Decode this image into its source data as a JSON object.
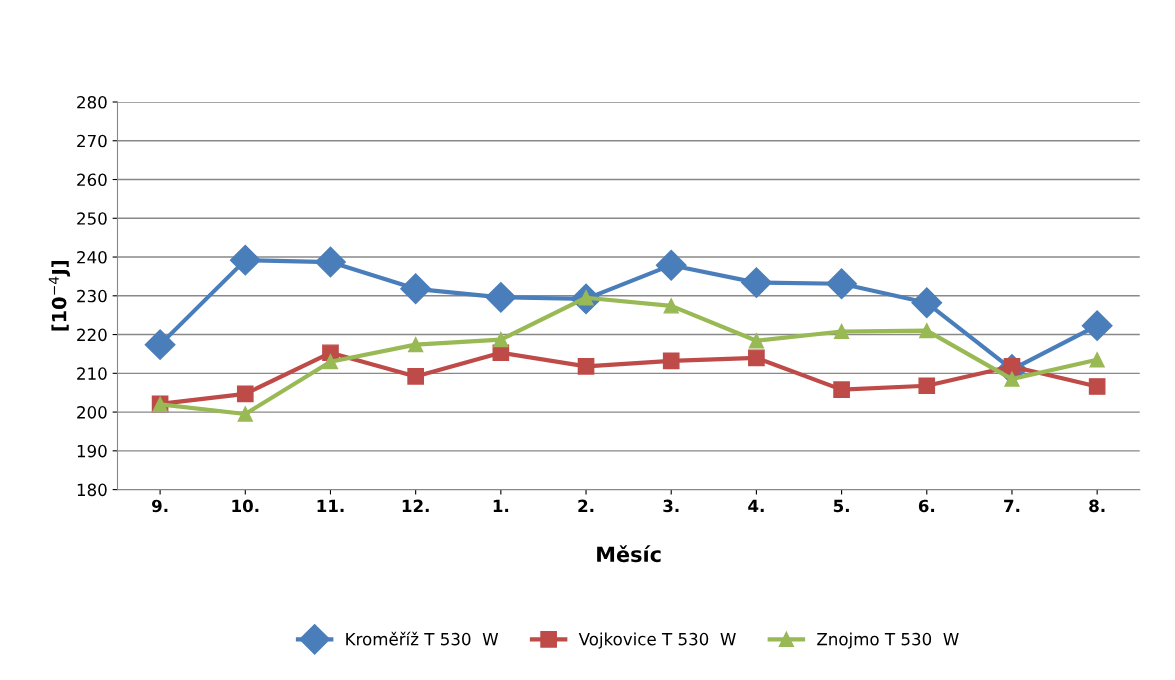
{
  "chart_data": {
    "type": "line",
    "xlabel": "Měsíc",
    "ylabel": "[10$^{−4}$J]",
    "categories": [
      "9.",
      "10.",
      "11.",
      "12.",
      "1.",
      "2.",
      "3.",
      "4.",
      "5.",
      "6.",
      "7.",
      "8."
    ],
    "ylim": [
      180,
      280
    ],
    "yticks": [
      180,
      190,
      200,
      210,
      220,
      230,
      240,
      250,
      260,
      270,
      280
    ],
    "grid": "y",
    "legend": "bottom",
    "series": [
      {
        "name": "Kroměříž T 530  W",
        "color": "#4a7ebb",
        "marker": "diamond",
        "values": [
          217.4,
          239.2,
          238.7,
          231.8,
          229.6,
          229.2,
          237.9,
          233.4,
          233.1,
          228.2,
          211,
          222.3
        ]
      },
      {
        "name": "Vojkovice T 530  W",
        "color": "#be4b48",
        "marker": "square",
        "values": [
          202.1,
          204.7,
          215.3,
          209.2,
          215.3,
          211.8,
          213.2,
          214,
          205.8,
          206.8,
          211.8,
          206.6
        ]
      },
      {
        "name": "Znojmo T 530  W",
        "color": "#98b954",
        "marker": "triangle",
        "values": [
          202,
          199.5,
          213,
          217.4,
          218.7,
          229.5,
          227.4,
          218.4,
          220.8,
          221,
          208.5,
          213.5
        ]
      }
    ]
  }
}
